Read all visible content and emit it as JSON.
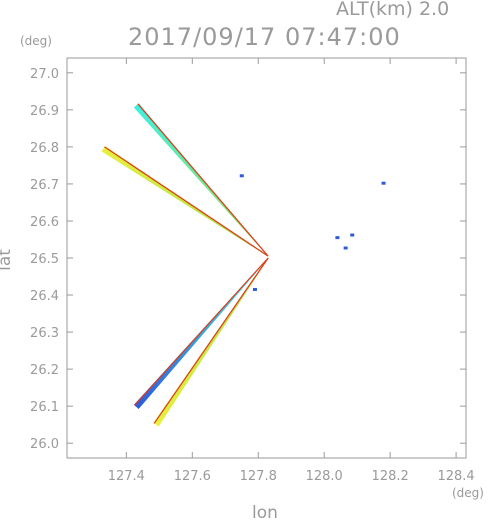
{
  "header": {
    "alt_label": "ALT(km)  2.0",
    "timestamp": "2017/09/17 07:47:00"
  },
  "axes": {
    "y_unit": "(deg)",
    "x_unit": "(deg)",
    "xlabel": "lon",
    "ylabel": "lat"
  },
  "colors": {
    "axis": "#9a9a9a",
    "red": "#e03a1a",
    "green": "#9ee04a",
    "yellow": "#e8f040",
    "cyan": "#3ff0e0",
    "blue": "#2f5bd8",
    "text": "#9a9a9a"
  },
  "chart_data": {
    "type": "scatter",
    "title": "2017/09/17 07:47:00",
    "subtitle": "ALT(km)  2.0",
    "xlabel": "lon",
    "ylabel": "lat",
    "x_unit": "(deg)",
    "y_unit": "(deg)",
    "xlim": [
      127.22,
      128.43
    ],
    "ylim": [
      25.96,
      27.04
    ],
    "x_ticks": [
      "127.4",
      "127.6",
      "127.8",
      "128.0",
      "128.2",
      "128.4"
    ],
    "y_ticks": [
      "26.0",
      "26.1",
      "26.2",
      "26.3",
      "26.4",
      "26.5",
      "26.6",
      "26.7",
      "26.8",
      "26.9",
      "27.0"
    ],
    "grid": false,
    "radar_origin": {
      "lon": 127.835,
      "lat": 26.505
    },
    "series": [
      {
        "from": [
          127.43,
          26.912
        ],
        "to": [
          127.83,
          26.505
        ],
        "colors": [
          "cyan",
          "green"
        ],
        "edge": "red"
      },
      {
        "from": [
          127.33,
          26.795
        ],
        "to": [
          127.83,
          26.505
        ],
        "colors": [
          "yellow",
          "green"
        ],
        "edge": "red"
      },
      {
        "from": [
          127.43,
          26.098
        ],
        "to": [
          127.83,
          26.5
        ],
        "colors": [
          "blue",
          "cyan"
        ],
        "edge": "red"
      },
      {
        "from": [
          127.49,
          26.05
        ],
        "to": [
          127.83,
          26.5
        ],
        "colors": [
          "yellow",
          "green"
        ],
        "edge": "red"
      }
    ],
    "echoes": [
      {
        "lon": 127.75,
        "lat": 26.722,
        "color": "blue"
      },
      {
        "lon": 128.18,
        "lat": 26.702,
        "color": "blue"
      },
      {
        "lon": 128.04,
        "lat": 26.555,
        "color": "blue"
      },
      {
        "lon": 128.065,
        "lat": 26.527,
        "color": "blue"
      },
      {
        "lon": 128.085,
        "lat": 26.562,
        "color": "blue"
      },
      {
        "lon": 127.79,
        "lat": 26.415,
        "color": "blue"
      }
    ]
  }
}
